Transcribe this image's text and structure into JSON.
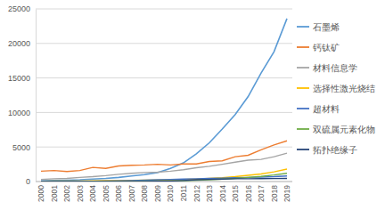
{
  "chart_data": {
    "type": "line",
    "categories": [
      "2000",
      "2001",
      "2002",
      "2003",
      "2004",
      "2005",
      "2006",
      "2007",
      "2008",
      "2009",
      "2010",
      "2011",
      "2012",
      "2013",
      "2014",
      "2015",
      "2016",
      "2017",
      "2018",
      "2019"
    ],
    "series": [
      {
        "name": "石墨烯",
        "color": "#5b9bd5",
        "values": [
          100,
          150,
          200,
          250,
          350,
          450,
          600,
          800,
          1000,
          1300,
          1900,
          2700,
          4000,
          5600,
          7600,
          9700,
          12300,
          15700,
          18800,
          23600
        ]
      },
      {
        "name": "钙钛矿",
        "color": "#ed7d31",
        "values": [
          1500,
          1600,
          1450,
          1600,
          2050,
          1900,
          2250,
          2350,
          2400,
          2500,
          2400,
          2550,
          2550,
          2900,
          3000,
          3600,
          3800,
          4600,
          5300,
          5900
        ]
      },
      {
        "name": "材料信息学",
        "color": "#a5a5a5",
        "values": [
          300,
          400,
          450,
          600,
          700,
          850,
          1050,
          1200,
          1300,
          1350,
          1500,
          1700,
          2000,
          2200,
          2500,
          2800,
          3100,
          3200,
          3600,
          4100
        ]
      },
      {
        "name": "选择性激光烧结",
        "color": "#ffc000",
        "values": [
          50,
          60,
          70,
          80,
          100,
          120,
          150,
          180,
          200,
          220,
          260,
          300,
          350,
          450,
          550,
          700,
          900,
          1100,
          1400,
          1800
        ]
      },
      {
        "name": "超材料",
        "color": "#4472c4",
        "values": [
          0,
          5,
          10,
          20,
          40,
          60,
          100,
          150,
          200,
          250,
          300,
          350,
          400,
          450,
          500,
          550,
          600,
          650,
          700,
          800
        ]
      },
      {
        "name": "双硫属元素化物",
        "color": "#70ad47",
        "values": [
          10,
          10,
          15,
          20,
          25,
          30,
          40,
          50,
          60,
          70,
          90,
          120,
          180,
          250,
          350,
          450,
          600,
          750,
          950,
          1200
        ]
      },
      {
        "name": "拓扑绝缘子",
        "color": "#264478",
        "values": [
          0,
          0,
          0,
          0,
          0,
          0,
          0,
          0,
          10,
          30,
          80,
          150,
          250,
          300,
          350,
          400,
          400,
          420,
          430,
          450
        ]
      }
    ],
    "ylim": [
      0,
      25000
    ],
    "yticks": [
      0,
      5000,
      10000,
      15000,
      20000,
      25000
    ],
    "grid": true,
    "legend": "right"
  }
}
